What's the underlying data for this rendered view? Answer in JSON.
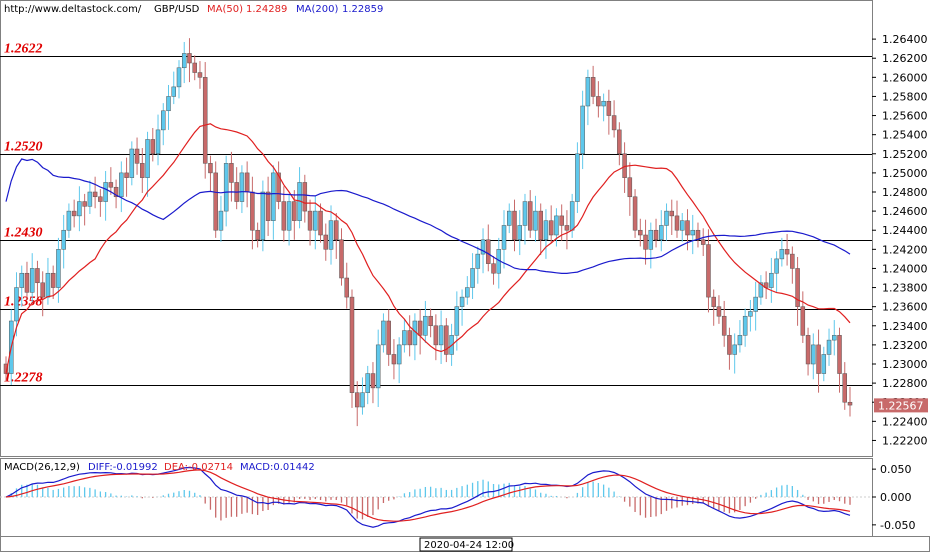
{
  "header": {
    "source": "http://www.deltastock.com/",
    "symbol": "GBP/USD",
    "ma50_label": "MA(50)",
    "ma50_value": "1.24289",
    "ma200_label": "MA(200)",
    "ma200_value": "1.22859"
  },
  "colors": {
    "bull": "#5ec8ec",
    "bear": "#c86a6a",
    "ma50": "#e02020",
    "ma200": "#1a1acc",
    "level_label": "#e00000",
    "macd_pos": "#5ec8ec",
    "macd_neg": "#c86a6a"
  },
  "macd_header": {
    "title": "MACD(26,12,9)",
    "diff": "DIFF:-0.01992",
    "dea": "DEA:-0.02714",
    "macd": "MACD:0.01442"
  },
  "x_axis": {
    "date_label": "2020-04-24 12:00"
  },
  "chart_data": [
    {
      "type": "candlestick",
      "title": "GBP/USD",
      "ylim": [
        1.221,
        1.266
      ],
      "y_ticks": [
        "1.26400",
        "1.26200",
        "1.26000",
        "1.25800",
        "1.25600",
        "1.25400",
        "1.25200",
        "1.25000",
        "1.24800",
        "1.24600",
        "1.24400",
        "1.24200",
        "1.24000",
        "1.23800",
        "1.23600",
        "1.23400",
        "1.23200",
        "1.23000",
        "1.22800",
        "1.22600",
        "1.22400",
        "1.22200"
      ],
      "y_tick_values": [
        1.264,
        1.262,
        1.26,
        1.258,
        1.256,
        1.254,
        1.252,
        1.25,
        1.248,
        1.246,
        1.244,
        1.242,
        1.24,
        1.238,
        1.236,
        1.234,
        1.232,
        1.23,
        1.228,
        1.226,
        1.224,
        1.222
      ],
      "last_price": "1.22567",
      "last_price_value": 1.22567,
      "levels": [
        {
          "value": 1.2622,
          "label": "1.2622"
        },
        {
          "value": 1.252,
          "label": "1.2520"
        },
        {
          "value": 1.243,
          "label": "1.2430"
        },
        {
          "value": 1.2358,
          "label": "1.2358"
        },
        {
          "value": 1.2278,
          "label": "1.2278"
        }
      ],
      "candle_closes": [
        1.229,
        1.2345,
        1.238,
        1.2395,
        1.2375,
        1.24,
        1.2385,
        1.237,
        1.2395,
        1.238,
        1.242,
        1.244,
        1.246,
        1.2455,
        1.247,
        1.2465,
        1.248,
        1.2475,
        1.247,
        1.249,
        1.2485,
        1.2475,
        1.25,
        1.2495,
        1.2525,
        1.251,
        1.2495,
        1.2535,
        1.252,
        1.2545,
        1.2565,
        1.258,
        1.259,
        1.261,
        1.2625,
        1.2615,
        1.2605,
        1.26,
        1.251,
        1.25,
        1.244,
        1.246,
        1.251,
        1.249,
        1.247,
        1.25,
        1.248,
        1.244,
        1.243,
        1.248,
        1.245,
        1.25,
        1.247,
        1.244,
        1.247,
        1.245,
        1.249,
        1.246,
        1.244,
        1.246,
        1.2435,
        1.242,
        1.245,
        1.243,
        1.239,
        1.237,
        1.227,
        1.2255,
        1.227,
        1.229,
        1.2275,
        1.232,
        1.2345,
        1.231,
        1.23,
        1.232,
        1.2335,
        1.232,
        1.2345,
        1.233,
        1.235,
        1.234,
        1.232,
        1.234,
        1.231,
        1.233,
        1.236,
        1.237,
        1.238,
        1.24,
        1.2415,
        1.243,
        1.2405,
        1.2395,
        1.242,
        1.2445,
        1.246,
        1.243,
        1.2445,
        1.247,
        1.244,
        1.246,
        1.243,
        1.245,
        1.2435,
        1.2455,
        1.2445,
        1.244,
        1.247,
        1.252,
        1.257,
        1.26,
        1.258,
        1.257,
        1.2575,
        1.256,
        1.2545,
        1.252,
        1.2495,
        1.2475,
        1.244,
        1.2435,
        1.242,
        1.244,
        1.243,
        1.2445,
        1.246,
        1.2455,
        1.244,
        1.245,
        1.2435,
        1.244,
        1.243,
        1.2425,
        1.237,
        1.236,
        1.235,
        1.233,
        1.231,
        1.232,
        1.233,
        1.235,
        1.2355,
        1.237,
        1.2385,
        1.238,
        1.2395,
        1.241,
        1.242,
        1.2415,
        1.24,
        1.236,
        1.233,
        1.23,
        1.232,
        1.229,
        1.231,
        1.2325,
        1.233,
        1.229,
        1.226,
        1.2257
      ]
    },
    {
      "type": "macd",
      "title": "MACD(26,12,9)",
      "ylim": [
        -0.07,
        0.07
      ],
      "y_ticks": [
        "0.050",
        "0.000",
        "-0.050"
      ],
      "y_tick_values": [
        0.05,
        0.0,
        -0.05
      ],
      "diff_label": "DIFF:-0.01992",
      "dea_label": "DEA:-0.02714",
      "macd_label": "MACD:0.01442"
    }
  ]
}
